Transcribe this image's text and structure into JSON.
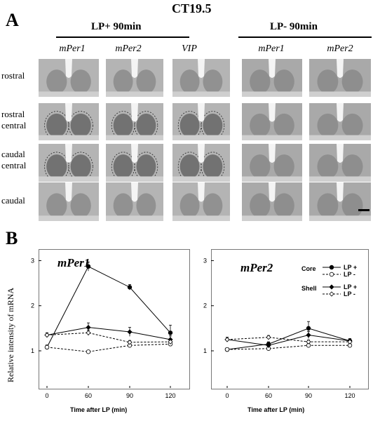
{
  "figure": {
    "title": "CT19.5",
    "panel_a_letter": "A",
    "panel_b_letter": "B",
    "group_lp_plus": "LP+ 90min",
    "group_lp_minus": "LP- 90min",
    "columns_lp_plus": [
      "mPer1",
      "mPer2",
      "VIP"
    ],
    "columns_lp_minus": [
      "mPer1",
      "mPer2"
    ],
    "rows": [
      "rostral",
      "rostral\ncentral",
      "caudal\ncentral",
      "caudal"
    ],
    "y_axis_label": "Relative intensity of mRNA"
  },
  "legend": {
    "core_label": "Core",
    "shell_label": "Shell",
    "lp_plus": "LP +",
    "lp_minus": "LP -"
  },
  "colors": {
    "ink": "#000000",
    "tissue": "#b0b0b0",
    "frame": "#777777"
  },
  "chart_data": [
    {
      "type": "line",
      "title": "mPer1",
      "xlabel": "Time after LP (min)",
      "ylabel": "Relative intensity of mRNA",
      "x": [
        0,
        60,
        90,
        120
      ],
      "xticks": [
        "0",
        "60",
        "90",
        "120"
      ],
      "yticks": [
        "1",
        "2",
        "3"
      ],
      "ylim": [
        0.3,
        3.1
      ],
      "series": [
        {
          "name": "Core LP +",
          "values": [
            1.08,
            2.87,
            2.41,
            1.4
          ],
          "errors": [
            0.05,
            0.1,
            0.06,
            0.17
          ],
          "marker": "filled-circle",
          "dash": false
        },
        {
          "name": "Core LP -",
          "values": [
            1.08,
            0.98,
            1.12,
            1.15
          ],
          "errors": [
            0.04,
            0.03,
            0.03,
            0.04
          ],
          "marker": "open-circle",
          "dash": true
        },
        {
          "name": "Shell LP +",
          "values": [
            1.35,
            1.52,
            1.42,
            1.25
          ],
          "errors": [
            0.05,
            0.1,
            0.1,
            0.08
          ],
          "marker": "filled-diamond",
          "dash": false
        },
        {
          "name": "Shell LP -",
          "values": [
            1.35,
            1.4,
            1.19,
            1.2
          ],
          "errors": [
            0.05,
            0.06,
            0.04,
            0.05
          ],
          "marker": "open-diamond",
          "dash": true
        }
      ]
    },
    {
      "type": "line",
      "title": "mPer2",
      "xlabel": "Time after LP (min)",
      "ylabel": "",
      "x": [
        0,
        60,
        90,
        120
      ],
      "xticks": [
        "0",
        "60",
        "90",
        "120"
      ],
      "yticks": [
        "1",
        "2",
        "3"
      ],
      "ylim": [
        0.3,
        3.1
      ],
      "series": [
        {
          "name": "Core LP +",
          "values": [
            1.03,
            1.15,
            1.5,
            1.22
          ],
          "errors": [
            0.03,
            0.05,
            0.15,
            0.05
          ],
          "marker": "filled-circle",
          "dash": false
        },
        {
          "name": "Core LP -",
          "values": [
            1.03,
            1.05,
            1.12,
            1.12
          ],
          "errors": [
            0.03,
            0.03,
            0.04,
            0.04
          ],
          "marker": "open-circle",
          "dash": true
        },
        {
          "name": "Shell LP +",
          "values": [
            1.25,
            1.12,
            1.35,
            1.22
          ],
          "errors": [
            0.05,
            0.05,
            0.08,
            0.05
          ],
          "marker": "filled-diamond",
          "dash": false
        },
        {
          "name": "Shell LP -",
          "values": [
            1.25,
            1.3,
            1.2,
            1.2
          ],
          "errors": [
            0.05,
            0.04,
            0.04,
            0.04
          ],
          "marker": "open-diamond",
          "dash": true
        }
      ]
    }
  ]
}
